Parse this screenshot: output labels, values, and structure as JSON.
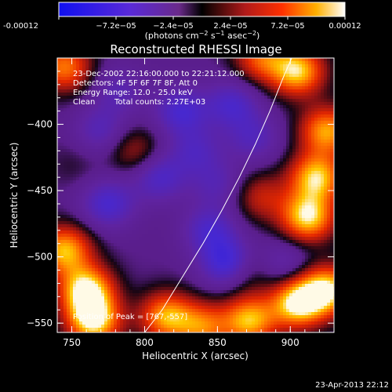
{
  "colorbar": {
    "tick_labels": [
      "-0.00012",
      "−7.2e−05",
      "−2.4e−05",
      "2.4e−05",
      "7.2e−05",
      "0.00012"
    ],
    "min": -0.00012,
    "max": 0.00012,
    "units_prefix": "(photons cm",
    "units_exp1": "−2",
    "units_mid": " s",
    "units_exp2": "−1",
    "units_mid2": " asec",
    "units_exp3": "−2",
    "units_suffix": ")"
  },
  "chart_data": {
    "type": "heatmap",
    "title": "Reconstructed RHESSI Image",
    "xlabel": "Heliocentric X (arcsec)",
    "ylabel": "Heliocentric Y (arcsec)",
    "xlim": [
      740,
      930
    ],
    "ylim": [
      -557,
      -350
    ],
    "x_ticks": [
      750,
      800,
      850,
      900
    ],
    "y_ticks": [
      -400,
      -450,
      -500,
      -550
    ],
    "x_tick_labels": [
      "750",
      "800",
      "850",
      "900"
    ],
    "y_tick_labels": [
      "−400",
      "−450",
      "−500",
      "−550"
    ],
    "limb_line": [
      [
        800,
        -557
      ],
      [
        812,
        -540
      ],
      [
        826,
        -515
      ],
      [
        840,
        -490
      ],
      [
        853,
        -465
      ],
      [
        865,
        -440
      ],
      [
        876,
        -415
      ],
      [
        886,
        -390
      ],
      [
        895,
        -365
      ],
      [
        903,
        -345
      ]
    ],
    "peak_position": [
      767,
      -557
    ],
    "blobs": [
      {
        "x": 760,
        "y": -525,
        "v": 1.0
      },
      {
        "x": 765,
        "y": -548,
        "v": 1.0
      },
      {
        "x": 745,
        "y": -495,
        "v": 0.85
      },
      {
        "x": 745,
        "y": -357,
        "v": 0.7
      },
      {
        "x": 815,
        "y": -545,
        "v": 0.8
      },
      {
        "x": 840,
        "y": -553,
        "v": 0.65
      },
      {
        "x": 872,
        "y": -548,
        "v": 0.85
      },
      {
        "x": 905,
        "y": -535,
        "v": 1.0
      },
      {
        "x": 925,
        "y": -525,
        "v": 0.95
      },
      {
        "x": 912,
        "y": -470,
        "v": 0.95
      },
      {
        "x": 918,
        "y": -440,
        "v": 0.9
      },
      {
        "x": 925,
        "y": -405,
        "v": 0.8
      },
      {
        "x": 905,
        "y": -360,
        "v": 0.9
      },
      {
        "x": 880,
        "y": -350,
        "v": 0.6
      },
      {
        "x": 880,
        "y": -455,
        "v": 0.4
      },
      {
        "x": 793,
        "y": -420,
        "v": 0.35
      },
      {
        "x": 870,
        "y": -510,
        "v": 0.35
      },
      {
        "x": 752,
        "y": -430,
        "v": 0.1
      },
      {
        "x": 775,
        "y": -460,
        "v": -0.5
      },
      {
        "x": 770,
        "y": -405,
        "v": -0.35
      },
      {
        "x": 782,
        "y": -375,
        "v": -0.3
      },
      {
        "x": 810,
        "y": -440,
        "v": -0.45
      },
      {
        "x": 825,
        "y": -390,
        "v": -0.5
      },
      {
        "x": 835,
        "y": -420,
        "v": -0.35
      },
      {
        "x": 845,
        "y": -480,
        "v": -0.45
      },
      {
        "x": 858,
        "y": -505,
        "v": -0.7
      },
      {
        "x": 860,
        "y": -385,
        "v": -0.45
      },
      {
        "x": 875,
        "y": -410,
        "v": -0.35
      },
      {
        "x": 850,
        "y": -445,
        "v": -0.3
      },
      {
        "x": 895,
        "y": -505,
        "v": -0.3
      }
    ]
  },
  "annotations": {
    "time_range": "23-Dec-2002 22:16:00.000 to 22:21:12.000",
    "detectors": "Detectors: 4F 5F 6F 7F 8F, Att 0",
    "energy": "Energy Range: 12.0 - 25.0 keV",
    "clean_label": "Clean",
    "total_counts": "Total counts: 2.27E+03",
    "peak": "Position of Peak = [767,-557]",
    "timestamp": "23-Apr-2013 22:12"
  }
}
